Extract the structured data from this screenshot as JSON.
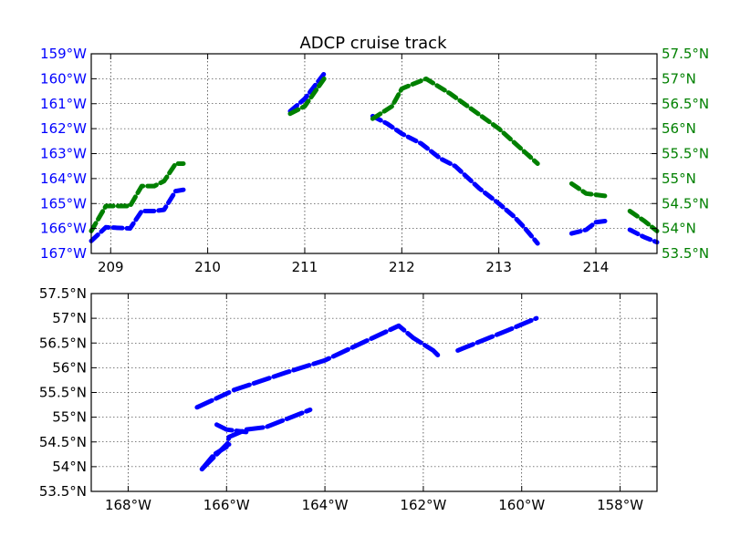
{
  "colors": {
    "lon": "#0000ff",
    "lat": "#008000",
    "text": "#000000"
  },
  "chart_data": [
    {
      "type": "line",
      "title": "ADCP cruise track",
      "xlim": [
        208.8,
        214.63
      ],
      "xticks": [
        "209",
        "210",
        "211",
        "212",
        "213",
        "214"
      ],
      "xtick_values": [
        209,
        210,
        211,
        212,
        213,
        214
      ],
      "left_axis": {
        "ylim": [
          -167,
          -159
        ],
        "ticks": [
          "159°W",
          "160°W",
          "161°W",
          "162°W",
          "163°W",
          "164°W",
          "165°W",
          "166°W",
          "167°W"
        ],
        "tick_values": [
          -159,
          -160,
          -161,
          -162,
          -163,
          -164,
          -165,
          -166,
          -167
        ]
      },
      "right_axis": {
        "ylim": [
          53.5,
          57.5
        ],
        "ticks": [
          "57.5°N",
          "57°N",
          "56.5°N",
          "56°N",
          "55.5°N",
          "55°N",
          "54.5°N",
          "54°N",
          "53.5°N"
        ],
        "tick_values": [
          57.5,
          57,
          56.5,
          56,
          55.5,
          55,
          54.5,
          54,
          53.5
        ]
      },
      "grid": true,
      "series": [
        {
          "axis": "left",
          "segments": [
            [
              [
                208.8,
                -166.5
              ],
              [
                208.95,
                -165.95
              ],
              [
                209.05,
                -165.97
              ],
              [
                209.2,
                -166.0
              ],
              [
                209.32,
                -165.3
              ],
              [
                209.45,
                -165.3
              ],
              [
                209.55,
                -165.25
              ],
              [
                209.67,
                -164.5
              ],
              [
                209.75,
                -164.45
              ]
            ],
            [
              [
                210.85,
                -161.3
              ],
              [
                211.0,
                -160.8
              ],
              [
                211.2,
                -159.8
              ]
            ],
            [
              [
                211.7,
                -161.5
              ],
              [
                211.85,
                -161.8
              ],
              [
                212.0,
                -162.2
              ],
              [
                212.2,
                -162.6
              ],
              [
                212.4,
                -163.2
              ],
              [
                212.55,
                -163.5
              ],
              [
                212.8,
                -164.4
              ],
              [
                213.0,
                -165.0
              ],
              [
                213.15,
                -165.5
              ],
              [
                213.25,
                -165.9
              ],
              [
                213.4,
                -166.6
              ]
            ],
            [
              [
                213.75,
                -166.2
              ],
              [
                213.9,
                -166.05
              ],
              [
                214.0,
                -165.75
              ],
              [
                214.1,
                -165.7
              ]
            ],
            [
              [
                214.35,
                -166.05
              ],
              [
                214.5,
                -166.35
              ],
              [
                214.63,
                -166.55
              ]
            ]
          ]
        },
        {
          "axis": "right",
          "segments": [
            [
              [
                208.8,
                53.95
              ],
              [
                208.95,
                54.45
              ],
              [
                209.05,
                54.45
              ],
              [
                209.2,
                54.45
              ],
              [
                209.32,
                54.85
              ],
              [
                209.45,
                54.85
              ],
              [
                209.55,
                54.95
              ],
              [
                209.67,
                55.3
              ],
              [
                209.75,
                55.3
              ]
            ],
            [
              [
                210.85,
                56.3
              ],
              [
                211.0,
                56.45
              ],
              [
                211.2,
                57.0
              ]
            ],
            [
              [
                211.7,
                56.2
              ],
              [
                211.9,
                56.45
              ],
              [
                212.0,
                56.8
              ],
              [
                212.25,
                57.0
              ],
              [
                212.5,
                56.7
              ],
              [
                212.75,
                56.35
              ],
              [
                213.0,
                56.0
              ],
              [
                213.2,
                55.65
              ],
              [
                213.4,
                55.3
              ]
            ],
            [
              [
                213.75,
                54.9
              ],
              [
                213.9,
                54.7
              ],
              [
                214.1,
                54.65
              ]
            ],
            [
              [
                214.35,
                54.35
              ],
              [
                214.5,
                54.15
              ],
              [
                214.63,
                53.95
              ]
            ]
          ]
        }
      ]
    },
    {
      "type": "line",
      "xlim": [
        -168.75,
        -157.25
      ],
      "ylim": [
        53.5,
        57.5
      ],
      "xticks": [
        "168°W",
        "166°W",
        "164°W",
        "162°W",
        "160°W",
        "158°W"
      ],
      "xtick_values": [
        -168,
        -166,
        -164,
        -162,
        -160,
        -158
      ],
      "yticks": [
        "57.5°N",
        "57°N",
        "56.5°N",
        "56°N",
        "55.5°N",
        "55°N",
        "54.5°N",
        "54°N",
        "53.5°N"
      ],
      "ytick_values": [
        57.5,
        57,
        56.5,
        56,
        55.5,
        55,
        54.5,
        54,
        53.5
      ],
      "grid": true,
      "series": [
        {
          "segments": [
            [
              [
                -166.5,
                53.95
              ],
              [
                -166.0,
                54.45
              ],
              [
                -165.95,
                54.45
              ]
            ],
            [
              [
                -166.5,
                53.95
              ],
              [
                -166.25,
                54.25
              ],
              [
                -166.0,
                54.4
              ],
              [
                -165.95,
                54.6
              ],
              [
                -165.6,
                54.75
              ],
              [
                -165.2,
                54.8
              ],
              [
                -164.3,
                55.15
              ]
            ],
            [
              [
                -166.2,
                54.85
              ],
              [
                -166.0,
                54.75
              ],
              [
                -165.6,
                54.7
              ]
            ],
            [
              [
                -166.6,
                55.2
              ],
              [
                -165.95,
                55.5
              ]
            ],
            [
              [
                -165.85,
                55.55
              ],
              [
                -164.8,
                55.9
              ],
              [
                -164.0,
                56.15
              ],
              [
                -162.5,
                56.85
              ],
              [
                -162.2,
                56.6
              ],
              [
                -161.8,
                56.35
              ],
              [
                -161.7,
                56.25
              ]
            ],
            [
              [
                -161.3,
                56.35
              ],
              [
                -160.3,
                56.75
              ],
              [
                -159.7,
                57.0
              ]
            ]
          ]
        }
      ]
    }
  ]
}
